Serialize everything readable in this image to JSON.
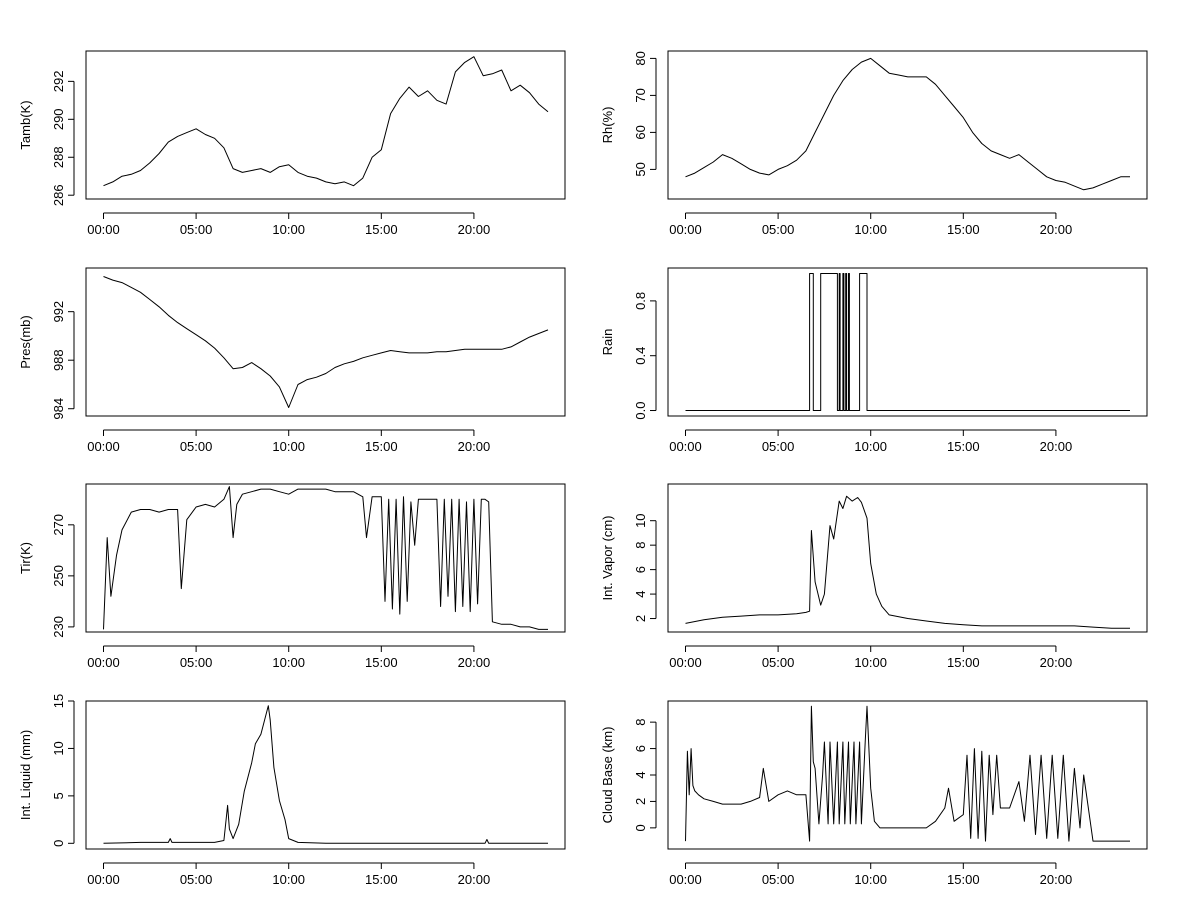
{
  "x_ticks": [
    "00:00",
    "05:00",
    "10:00",
    "15:00",
    "20:00"
  ],
  "chart_data": [
    {
      "type": "line",
      "ylabel": "Tamb(K)",
      "xlim": [
        0,
        24
      ],
      "ylim": [
        285.8,
        293.6
      ],
      "yticks": [
        286,
        288,
        290,
        292
      ],
      "series": [
        {
          "x": [
            0.0,
            0.5,
            1.0,
            1.5,
            2.0,
            2.5,
            3.0,
            3.5,
            4.0,
            4.5,
            5.0,
            5.5,
            6.0,
            6.5,
            7.0,
            7.5,
            8.0,
            8.5,
            9.0,
            9.5,
            10.0,
            10.5,
            11.0,
            11.5,
            12.0,
            12.5,
            13.0,
            13.5,
            14.0,
            14.5,
            15.0,
            15.5,
            16.0,
            16.5,
            17.0,
            17.5,
            18.0,
            18.5,
            19.0,
            19.5,
            20.0,
            20.5,
            21.0,
            21.5,
            22.0,
            22.5,
            23.0,
            23.5,
            24.0
          ],
          "y": [
            286.5,
            286.7,
            287.0,
            287.1,
            287.3,
            287.7,
            288.2,
            288.8,
            289.1,
            289.3,
            289.5,
            289.2,
            289.0,
            288.5,
            287.4,
            287.2,
            287.3,
            287.4,
            287.2,
            287.5,
            287.6,
            287.2,
            287.0,
            286.9,
            286.7,
            286.6,
            286.7,
            286.5,
            286.9,
            288.0,
            288.4,
            290.3,
            291.1,
            291.7,
            291.2,
            291.5,
            291.0,
            290.8,
            292.5,
            293.0,
            293.3,
            292.3,
            292.4,
            292.6,
            291.5,
            291.8,
            291.4,
            290.8,
            290.4
          ]
        }
      ]
    },
    {
      "type": "line",
      "ylabel": "Rh(%)",
      "xlim": [
        0,
        24
      ],
      "ylim": [
        42,
        82
      ],
      "yticks": [
        50,
        60,
        70,
        80
      ],
      "series": [
        {
          "x": [
            0.0,
            0.5,
            1.0,
            1.5,
            2.0,
            2.5,
            3.0,
            3.5,
            4.0,
            4.5,
            5.0,
            5.5,
            6.0,
            6.5,
            7.0,
            7.5,
            8.0,
            8.5,
            9.0,
            9.5,
            10.0,
            10.5,
            11.0,
            11.5,
            12.0,
            12.5,
            13.0,
            13.5,
            14.0,
            14.5,
            15.0,
            15.5,
            16.0,
            16.5,
            17.0,
            17.5,
            18.0,
            18.5,
            19.0,
            19.5,
            20.0,
            20.5,
            21.0,
            21.5,
            22.0,
            22.5,
            23.0,
            23.5,
            24.0
          ],
          "y": [
            48,
            49,
            50.5,
            52,
            54,
            53,
            51.5,
            50,
            49,
            48.5,
            50,
            51,
            52.5,
            55,
            60,
            65,
            70,
            74,
            77,
            79,
            80,
            78,
            76,
            75.5,
            75,
            75,
            75,
            73,
            70,
            67,
            64,
            60,
            57,
            55,
            54,
            53,
            54,
            52,
            50,
            48,
            47,
            46.5,
            45.5,
            44.5,
            45,
            46,
            47,
            48,
            48
          ]
        }
      ]
    },
    {
      "type": "line",
      "ylabel": "Pres(mb)",
      "xlim": [
        0,
        24
      ],
      "ylim": [
        983.4,
        995.6
      ],
      "yticks": [
        984,
        988,
        992
      ],
      "series": [
        {
          "x": [
            0.0,
            0.5,
            1.0,
            1.5,
            2.0,
            2.5,
            3.0,
            3.5,
            4.0,
            4.5,
            5.0,
            5.5,
            6.0,
            6.5,
            7.0,
            7.5,
            8.0,
            8.5,
            9.0,
            9.5,
            10.0,
            10.5,
            11.0,
            11.5,
            12.0,
            12.5,
            13.0,
            13.5,
            14.0,
            14.5,
            15.0,
            15.5,
            16.0,
            16.5,
            17.0,
            17.5,
            18.0,
            18.5,
            19.0,
            19.5,
            20.0,
            20.5,
            21.0,
            21.5,
            22.0,
            22.5,
            23.0,
            23.5,
            24.0
          ],
          "y": [
            994.9,
            994.6,
            994.4,
            994.0,
            993.6,
            993.0,
            992.4,
            991.7,
            991.1,
            990.6,
            990.1,
            989.6,
            989.0,
            988.2,
            987.3,
            987.4,
            987.8,
            987.3,
            986.7,
            985.8,
            984.1,
            986.0,
            986.4,
            986.6,
            986.9,
            987.4,
            987.7,
            987.9,
            988.2,
            988.4,
            988.6,
            988.8,
            988.7,
            988.6,
            988.6,
            988.6,
            988.7,
            988.7,
            988.8,
            988.9,
            988.9,
            988.9,
            988.9,
            988.9,
            989.1,
            989.5,
            989.9,
            990.2,
            990.5
          ]
        }
      ]
    },
    {
      "type": "line",
      "ylabel": "Rain",
      "xlim": [
        0,
        24
      ],
      "ylim": [
        -0.04,
        1.04
      ],
      "yticks": [
        0.0,
        0.4,
        0.8
      ],
      "ytick_labels": [
        "0.0",
        "0.4",
        "0.8"
      ],
      "series": [
        {
          "x": [
            0.0,
            6.7,
            6.7,
            6.9,
            6.9,
            7.3,
            7.3,
            8.2,
            8.2,
            8.3,
            8.3,
            8.35,
            8.35,
            8.5,
            8.5,
            8.55,
            8.55,
            8.65,
            8.65,
            8.7,
            8.7,
            8.8,
            8.8,
            8.85,
            8.85,
            9.4,
            9.4,
            9.8,
            9.8,
            24.0
          ],
          "y": [
            0,
            0,
            1,
            1,
            0,
            0,
            1,
            1,
            0,
            0,
            1,
            1,
            0,
            0,
            1,
            1,
            0,
            0,
            1,
            1,
            0,
            0,
            1,
            1,
            0,
            0,
            1,
            1,
            0,
            0
          ]
        }
      ]
    },
    {
      "type": "line",
      "ylabel": "Tir(K)",
      "xlim": [
        0,
        24
      ],
      "ylim": [
        228,
        286
      ],
      "yticks": [
        230,
        250,
        270
      ],
      "series": [
        {
          "x": [
            0.0,
            0.2,
            0.4,
            0.7,
            1.0,
            1.5,
            2.0,
            2.5,
            3.0,
            3.5,
            4.0,
            4.2,
            4.5,
            5.0,
            5.5,
            6.0,
            6.5,
            6.8,
            7.0,
            7.2,
            7.5,
            8.0,
            8.5,
            9.0,
            9.5,
            10.0,
            10.5,
            11.0,
            11.5,
            12.0,
            12.5,
            13.0,
            13.5,
            14.0,
            14.2,
            14.5,
            15.0,
            15.2,
            15.4,
            15.6,
            15.8,
            16.0,
            16.2,
            16.4,
            16.6,
            16.8,
            17.0,
            17.5,
            18.0,
            18.2,
            18.4,
            18.6,
            18.8,
            19.0,
            19.2,
            19.4,
            19.6,
            19.8,
            20.0,
            20.2,
            20.4,
            20.6,
            20.8,
            21.0,
            21.5,
            22.0,
            22.5,
            23.0,
            23.5,
            24.0
          ],
          "y": [
            229,
            265,
            242,
            258,
            268,
            275,
            276,
            276,
            275,
            276,
            276,
            245,
            272,
            277,
            278,
            277,
            280,
            285,
            265,
            278,
            282,
            283,
            284,
            284,
            283,
            282,
            284,
            284,
            284,
            284,
            283,
            283,
            283,
            281,
            265,
            281,
            281,
            240,
            280,
            237,
            280,
            235,
            281,
            240,
            279,
            262,
            280,
            280,
            280,
            238,
            280,
            242,
            280,
            236,
            280,
            238,
            279,
            236,
            280,
            239,
            280,
            280,
            279,
            232,
            231,
            231,
            230,
            230,
            229,
            229
          ]
        }
      ]
    },
    {
      "type": "line",
      "ylabel": "Int. Vapor (cm)",
      "xlim": [
        0,
        24
      ],
      "ylim": [
        0.9,
        13.0
      ],
      "yticks": [
        2,
        4,
        6,
        8,
        10
      ],
      "series": [
        {
          "x": [
            0.0,
            1.0,
            2.0,
            3.0,
            4.0,
            5.0,
            6.0,
            6.5,
            6.7,
            6.8,
            7.0,
            7.3,
            7.5,
            7.8,
            8.0,
            8.3,
            8.5,
            8.7,
            9.0,
            9.3,
            9.5,
            9.8,
            10.0,
            10.3,
            10.6,
            11.0,
            12.0,
            13.0,
            14.0,
            15.0,
            16.0,
            17.0,
            18.0,
            19.0,
            20.0,
            21.0,
            22.0,
            23.0,
            24.0
          ],
          "y": [
            1.6,
            1.9,
            2.1,
            2.2,
            2.3,
            2.3,
            2.4,
            2.5,
            2.6,
            9.2,
            5.0,
            3.1,
            4.0,
            9.6,
            8.5,
            11.6,
            11.0,
            12.0,
            11.6,
            11.9,
            11.5,
            10.2,
            6.5,
            4.0,
            3.0,
            2.3,
            2.0,
            1.8,
            1.6,
            1.5,
            1.4,
            1.4,
            1.4,
            1.4,
            1.4,
            1.4,
            1.3,
            1.2,
            1.2
          ]
        }
      ]
    },
    {
      "type": "line",
      "ylabel": "Int. Liquid (mm)",
      "xlim": [
        0,
        24
      ],
      "ylim": [
        -0.6,
        15.0
      ],
      "yticks": [
        0,
        5,
        10,
        15
      ],
      "series": [
        {
          "x": [
            0.0,
            2.0,
            3.5,
            3.6,
            3.7,
            6.0,
            6.5,
            6.7,
            6.8,
            7.0,
            7.3,
            7.6,
            8.0,
            8.2,
            8.5,
            8.7,
            8.9,
            9.0,
            9.2,
            9.5,
            9.8,
            10.0,
            10.5,
            12.0,
            15.0,
            18.0,
            20.6,
            20.7,
            20.8,
            24.0
          ],
          "y": [
            0,
            0.1,
            0.1,
            0.5,
            0.1,
            0.1,
            0.3,
            4.0,
            1.5,
            0.5,
            2.0,
            5.5,
            8.5,
            10.5,
            11.5,
            13.0,
            14.5,
            13.0,
            8.0,
            4.5,
            2.5,
            0.5,
            0.1,
            0.0,
            0.0,
            0.0,
            0.0,
            0.4,
            0.0,
            0.0
          ]
        }
      ]
    },
    {
      "type": "line",
      "ylabel": "Cloud Base (km)",
      "xlim": [
        0,
        24
      ],
      "ylim": [
        -1.6,
        9.6
      ],
      "yticks": [
        0,
        2,
        4,
        6,
        8
      ],
      "series": [
        {
          "x": [
            0.0,
            0.1,
            0.2,
            0.3,
            0.4,
            0.5,
            0.7,
            1.0,
            1.5,
            2.0,
            3.0,
            3.5,
            4.0,
            4.2,
            4.5,
            5.0,
            5.5,
            6.0,
            6.5,
            6.7,
            6.8,
            6.9,
            7.0,
            7.2,
            7.4,
            7.5,
            7.7,
            7.8,
            8.0,
            8.2,
            8.3,
            8.5,
            8.6,
            8.8,
            8.9,
            9.1,
            9.2,
            9.4,
            9.5,
            9.7,
            9.8,
            10.0,
            10.2,
            10.5,
            11.0,
            12.0,
            13.0,
            13.5,
            14.0,
            14.2,
            14.5,
            15.0,
            15.2,
            15.4,
            15.6,
            15.8,
            16.0,
            16.2,
            16.4,
            16.6,
            16.8,
            17.0,
            17.5,
            18.0,
            18.3,
            18.6,
            18.9,
            19.2,
            19.5,
            19.8,
            20.1,
            20.4,
            20.7,
            21.0,
            21.3,
            21.5,
            22.0,
            23.0,
            24.0
          ],
          "y": [
            -1.0,
            5.8,
            2.5,
            6.0,
            3.2,
            2.8,
            2.5,
            2.2,
            2.0,
            1.8,
            1.8,
            2.0,
            2.3,
            4.5,
            2.0,
            2.5,
            2.8,
            2.5,
            2.5,
            -1.0,
            9.2,
            5.0,
            4.5,
            0.3,
            4.0,
            6.5,
            0.3,
            6.5,
            0.3,
            6.5,
            0.3,
            6.5,
            0.3,
            6.5,
            0.3,
            6.5,
            0.3,
            6.5,
            0.3,
            6.5,
            9.2,
            3.0,
            0.5,
            0.0,
            0.0,
            0.0,
            0.0,
            0.5,
            1.5,
            3.0,
            0.5,
            1.0,
            5.5,
            -0.8,
            6.0,
            -0.8,
            5.8,
            -1.0,
            5.5,
            1.0,
            5.5,
            1.5,
            1.5,
            3.5,
            0.5,
            5.5,
            -0.5,
            5.5,
            -0.8,
            5.5,
            -0.8,
            5.5,
            -1.0,
            4.5,
            0.0,
            4.0,
            -1.0,
            -1.0,
            -1.0
          ]
        }
      ]
    }
  ]
}
